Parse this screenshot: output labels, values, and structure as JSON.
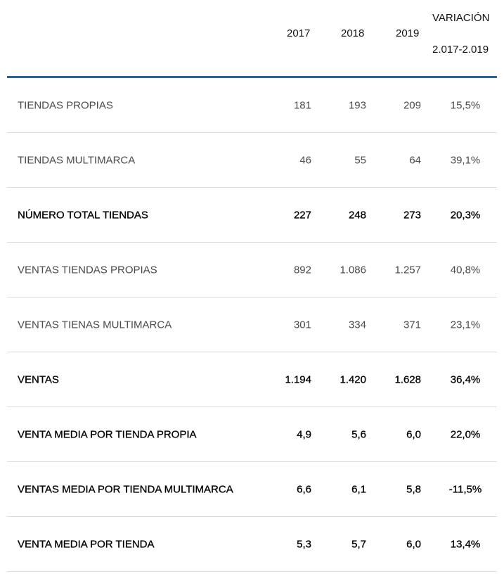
{
  "header": {
    "columns": [
      "2017",
      "2018",
      "2019"
    ],
    "variation_title": "VARIACIÓN",
    "variation_range": "2.017-2.019"
  },
  "rows": [
    {
      "label": "TIENDAS PROPIAS",
      "v2017": "181",
      "v2018": "193",
      "v2019": "209",
      "variation": "15,5%",
      "emphasis": false
    },
    {
      "label": "TIENDAS MULTIMARCA",
      "v2017": "46",
      "v2018": "55",
      "v2019": "64",
      "variation": "39,1%",
      "emphasis": false
    },
    {
      "label": "NÚMERO TOTAL TIENDAS",
      "v2017": "227",
      "v2018": "248",
      "v2019": "273",
      "variation": "20,3%",
      "emphasis": true
    },
    {
      "label": "VENTAS TIENDAS PROPIAS",
      "v2017": "892",
      "v2018": "1.086",
      "v2019": "1.257",
      "variation": "40,8%",
      "emphasis": false
    },
    {
      "label": "VENTAS TIENAS MULTIMARCA",
      "v2017": "301",
      "v2018": "334",
      "v2019": "371",
      "variation": "23,1%",
      "emphasis": false
    },
    {
      "label": "VENTAS",
      "v2017": "1.194",
      "v2018": "1.420",
      "v2019": "1.628",
      "variation": "36,4%",
      "emphasis": true
    },
    {
      "label": "VENTA MEDIA POR TIENDA PROPIA",
      "v2017": "4,9",
      "v2018": "5,6",
      "v2019": "6,0",
      "variation": "22,0%",
      "emphasis": true
    },
    {
      "label": "VENTAS MEDIA POR TIENDA MULTIMARCA",
      "v2017": "6,6",
      "v2018": "6,1",
      "v2019": "5,8",
      "variation": "-11,5%",
      "emphasis": true
    },
    {
      "label": "VENTA MEDIA POR TIENDA",
      "v2017": "5,3",
      "v2018": "5,7",
      "v2019": "6,0",
      "variation": "13,4%",
      "emphasis": true
    }
  ],
  "colors": {
    "header_rule": "#2a6496",
    "row_divider": "#dcdcdc"
  }
}
